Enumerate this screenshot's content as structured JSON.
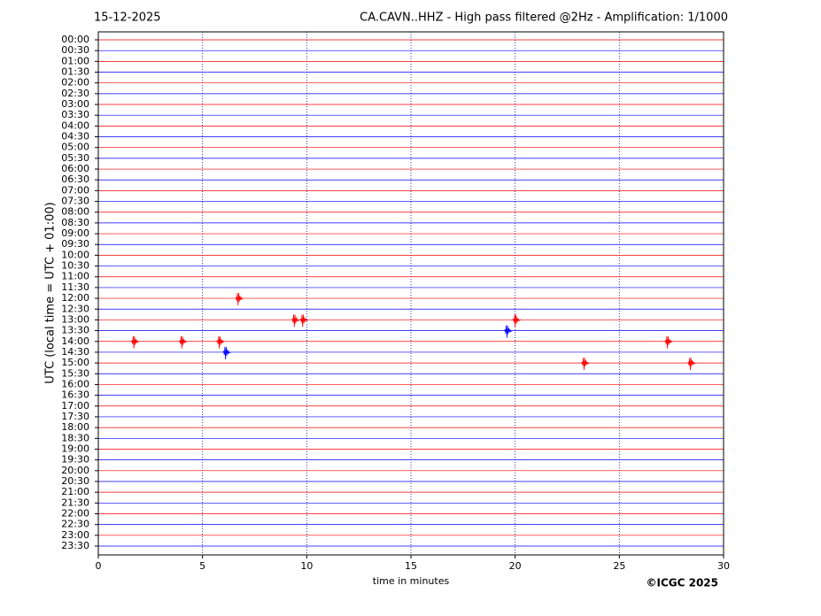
{
  "chart_data": {
    "type": "helicorder",
    "date": "15-12-2025",
    "title": "CA.CAVN..HHZ - High pass filtered @2Hz - Amplification: 1/1000",
    "xlabel": "time in minutes",
    "ylabel": "UTC (local time = UTC + 01:00)",
    "credit": "©ICGC 2025",
    "xlim": [
      0,
      30
    ],
    "xticks": [
      0,
      5,
      10,
      15,
      20,
      25,
      30
    ],
    "grid": true,
    "trace_colors": [
      "#ff0000",
      "#0000ff"
    ],
    "categories": [
      "00:00",
      "00:30",
      "01:00",
      "01:30",
      "02:00",
      "02:30",
      "03:00",
      "03:30",
      "04:00",
      "04:30",
      "05:00",
      "05:30",
      "06:00",
      "06:30",
      "07:00",
      "07:30",
      "08:00",
      "08:30",
      "09:00",
      "09:30",
      "10:00",
      "10:30",
      "11:00",
      "11:30",
      "12:00",
      "12:30",
      "13:00",
      "13:30",
      "14:00",
      "14:30",
      "15:00",
      "15:30",
      "16:00",
      "16:30",
      "17:00",
      "17:30",
      "18:00",
      "18:30",
      "19:00",
      "19:30",
      "20:00",
      "20:30",
      "21:00",
      "21:30",
      "22:00",
      "22:30",
      "23:00",
      "23:30"
    ],
    "events": [
      {
        "row": "12:00",
        "x": 6.7
      },
      {
        "row": "13:00",
        "x": 9.4
      },
      {
        "row": "13:00",
        "x": 9.8
      },
      {
        "row": "13:00",
        "x": 20.0
      },
      {
        "row": "13:30",
        "x": 19.6
      },
      {
        "row": "14:00",
        "x": 1.7
      },
      {
        "row": "14:00",
        "x": 4.0
      },
      {
        "row": "14:00",
        "x": 5.8
      },
      {
        "row": "14:00",
        "x": 27.3
      },
      {
        "row": "14:30",
        "x": 6.1
      },
      {
        "row": "15:00",
        "x": 23.3
      },
      {
        "row": "15:00",
        "x": 28.4
      }
    ]
  }
}
